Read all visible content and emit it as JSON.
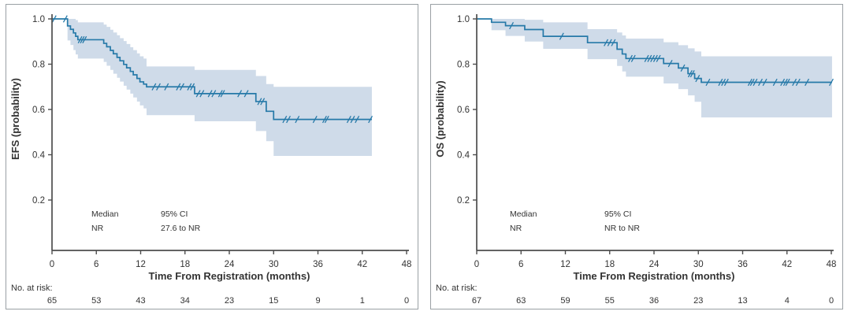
{
  "colors": {
    "curve": "#2679a8",
    "band": "#cfdbe9",
    "axis": "#4d4d4d",
    "text": "#333333",
    "border": "#9aa0a4"
  },
  "chart_data": [
    {
      "type": "line",
      "subtype": "kaplan_meier_step",
      "title": "",
      "xlabel": "Time From Registration (months)",
      "ylabel": "EFS (probability)",
      "xlim": [
        0,
        48
      ],
      "ylim": [
        0,
        1.05
      ],
      "xticks": [
        0,
        6,
        12,
        18,
        24,
        30,
        36,
        42,
        48
      ],
      "yticks": [
        0.2,
        0.4,
        0.6,
        0.8,
        1.0
      ],
      "grid": false,
      "legend_position": "none",
      "annotation": {
        "median_label": "Median",
        "median_value": "NR",
        "ci_label": "95% CI",
        "ci_value": "27.6 to NR",
        "col_x": [
          108,
          196
        ],
        "row_y": [
          269,
          287
        ]
      },
      "at_risk": {
        "label": "No. at risk:",
        "times": [
          0,
          6,
          12,
          18,
          24,
          30,
          36,
          42,
          48
        ],
        "counts": [
          65,
          53,
          43,
          34,
          23,
          15,
          9,
          1,
          0
        ]
      },
      "curve": {
        "x": [
          0,
          2.1,
          2.5,
          2.9,
          3.2,
          3.5,
          7.0,
          7.4,
          7.9,
          8.3,
          8.8,
          9.2,
          9.7,
          10.1,
          10.6,
          11.0,
          11.5,
          11.9,
          12.4,
          12.8,
          19.3,
          27.6,
          29.0,
          30.0
        ],
        "y": [
          1.0,
          0.969,
          0.954,
          0.938,
          0.923,
          0.908,
          0.892,
          0.877,
          0.861,
          0.846,
          0.83,
          0.815,
          0.799,
          0.784,
          0.768,
          0.753,
          0.737,
          0.722,
          0.712,
          0.7,
          0.67,
          0.635,
          0.592,
          0.556
        ],
        "x_end": 43.3
      },
      "censors": [
        [
          0.3,
          1.0
        ],
        [
          1.8,
          1.0
        ],
        [
          3.8,
          0.908
        ],
        [
          4.1,
          0.908
        ],
        [
          4.4,
          0.908
        ],
        [
          13.8,
          0.7
        ],
        [
          14.4,
          0.7
        ],
        [
          15.5,
          0.7
        ],
        [
          17.1,
          0.7
        ],
        [
          17.6,
          0.7
        ],
        [
          18.6,
          0.7
        ],
        [
          19.0,
          0.7
        ],
        [
          19.8,
          0.67
        ],
        [
          20.3,
          0.67
        ],
        [
          21.4,
          0.67
        ],
        [
          21.9,
          0.67
        ],
        [
          22.8,
          0.67
        ],
        [
          23.1,
          0.67
        ],
        [
          25.4,
          0.67
        ],
        [
          26.3,
          0.67
        ],
        [
          28.1,
          0.635
        ],
        [
          28.5,
          0.635
        ],
        [
          31.5,
          0.556
        ],
        [
          32.0,
          0.556
        ],
        [
          33.2,
          0.556
        ],
        [
          35.6,
          0.556
        ],
        [
          36.9,
          0.556
        ],
        [
          37.2,
          0.556
        ],
        [
          40.2,
          0.556
        ],
        [
          40.7,
          0.556
        ],
        [
          41.3,
          0.556
        ],
        [
          43.1,
          0.556
        ]
      ],
      "band": {
        "x": [
          2.1,
          2.5,
          2.9,
          3.2,
          3.5,
          7.0,
          7.4,
          7.9,
          8.3,
          8.8,
          9.2,
          9.7,
          10.1,
          10.6,
          11.0,
          11.5,
          11.9,
          12.4,
          12.8,
          19.3,
          27.6,
          29.0,
          30.0
        ],
        "upper": [
          1.0,
          1.0,
          1.0,
          0.995,
          0.985,
          0.975,
          0.965,
          0.952,
          0.94,
          0.928,
          0.915,
          0.902,
          0.889,
          0.875,
          0.862,
          0.848,
          0.835,
          0.825,
          0.79,
          0.775,
          0.748,
          0.712,
          0.7
        ],
        "lower": [
          0.905,
          0.885,
          0.862,
          0.843,
          0.825,
          0.81,
          0.793,
          0.775,
          0.758,
          0.74,
          0.723,
          0.705,
          0.688,
          0.67,
          0.653,
          0.635,
          0.618,
          0.605,
          0.575,
          0.548,
          0.505,
          0.46,
          0.395
        ],
        "x_end": 43.3
      }
    },
    {
      "type": "line",
      "subtype": "kaplan_meier_step",
      "title": "",
      "xlabel": "Time From Registration (months)",
      "ylabel": "OS (probability)",
      "xlim": [
        0,
        48
      ],
      "ylim": [
        0,
        1.05
      ],
      "xticks": [
        0,
        6,
        12,
        18,
        24,
        30,
        36,
        42,
        48
      ],
      "yticks": [
        0.2,
        0.4,
        0.6,
        0.8,
        1.0
      ],
      "grid": false,
      "legend_position": "none",
      "annotation": {
        "median_label": "Median",
        "median_value": "NR",
        "ci_label": "95% CI",
        "ci_value": "NR to NR",
        "col_x": [
          100,
          220
        ],
        "row_y": [
          269,
          287
        ]
      },
      "at_risk": {
        "label": "No. at risk:",
        "times": [
          0,
          6,
          12,
          18,
          24,
          30,
          36,
          42,
          48
        ],
        "counts": [
          67,
          63,
          59,
          55,
          36,
          23,
          13,
          4,
          0
        ]
      },
      "curve": {
        "x": [
          0,
          2.0,
          3.9,
          6.5,
          9.0,
          15.0,
          19.0,
          19.7,
          20.2,
          25.3,
          27.3,
          28.6,
          29.5,
          30.4
        ],
        "y": [
          1.0,
          0.985,
          0.97,
          0.953,
          0.923,
          0.895,
          0.866,
          0.845,
          0.825,
          0.803,
          0.783,
          0.758,
          0.737,
          0.72
        ],
        "x_end": 48.1
      },
      "censors": [
        [
          4.7,
          0.97
        ],
        [
          11.5,
          0.923
        ],
        [
          17.5,
          0.895
        ],
        [
          18.0,
          0.895
        ],
        [
          18.5,
          0.895
        ],
        [
          20.8,
          0.825
        ],
        [
          21.2,
          0.825
        ],
        [
          23.0,
          0.825
        ],
        [
          23.4,
          0.825
        ],
        [
          23.8,
          0.825
        ],
        [
          24.2,
          0.825
        ],
        [
          24.6,
          0.825
        ],
        [
          26.2,
          0.803
        ],
        [
          27.9,
          0.783
        ],
        [
          28.9,
          0.758
        ],
        [
          29.2,
          0.758
        ],
        [
          29.9,
          0.737
        ],
        [
          31.3,
          0.72
        ],
        [
          33.0,
          0.72
        ],
        [
          33.4,
          0.72
        ],
        [
          33.8,
          0.72
        ],
        [
          37.0,
          0.72
        ],
        [
          37.3,
          0.72
        ],
        [
          37.7,
          0.72
        ],
        [
          38.4,
          0.72
        ],
        [
          39.0,
          0.72
        ],
        [
          40.4,
          0.72
        ],
        [
          41.4,
          0.72
        ],
        [
          41.8,
          0.72
        ],
        [
          42.1,
          0.72
        ],
        [
          43.0,
          0.72
        ],
        [
          43.5,
          0.72
        ],
        [
          44.7,
          0.72
        ],
        [
          48.0,
          0.72
        ]
      ],
      "band": {
        "x": [
          2.0,
          3.9,
          6.5,
          9.0,
          15.0,
          19.0,
          19.7,
          20.2,
          25.3,
          27.3,
          28.6,
          29.5,
          30.4
        ],
        "upper": [
          1.0,
          1.0,
          0.996,
          0.985,
          0.955,
          0.94,
          0.927,
          0.913,
          0.897,
          0.884,
          0.87,
          0.856,
          0.835
        ],
        "lower": [
          0.95,
          0.925,
          0.9,
          0.868,
          0.822,
          0.792,
          0.768,
          0.745,
          0.715,
          0.69,
          0.662,
          0.634,
          0.565
        ],
        "x_end": 48.1
      }
    }
  ]
}
